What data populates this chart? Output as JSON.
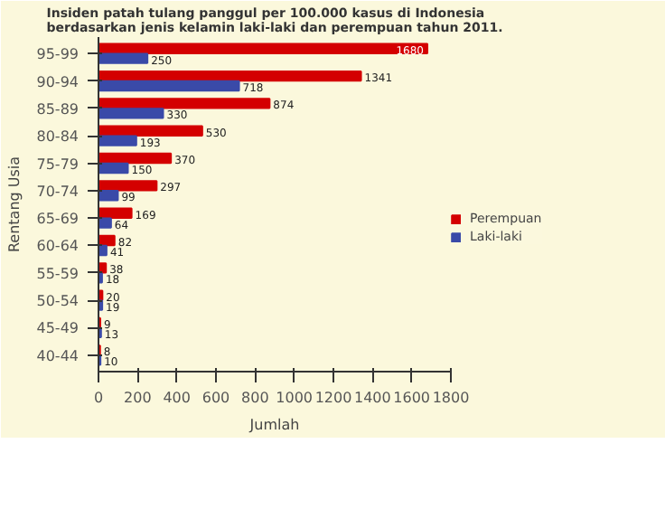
{
  "chart_data": {
    "type": "bar",
    "orientation": "horizontal",
    "title": "Insiden patah tulang panggul per 100.000 kasus di Indonesia berdasarkan jenis kelamin laki-laki dan perempuan tahun 2011.",
    "xlabel": "Jumlah",
    "ylabel": "Rentang Usia",
    "categories": [
      "95-99",
      "90-94",
      "85-89",
      "80-84",
      "75-79",
      "70-74",
      "65-69",
      "60-64",
      "55-59",
      "50-54",
      "45-49",
      "40-44"
    ],
    "series": [
      {
        "name": "Perempuan",
        "color": "#d40000",
        "values": [
          1680,
          1341,
          874,
          530,
          370,
          297,
          169,
          82,
          38,
          20,
          9,
          8
        ]
      },
      {
        "name": "Laki-laki",
        "color": "#3a4aa8",
        "values": [
          250,
          718,
          330,
          193,
          150,
          99,
          64,
          41,
          18,
          19,
          13,
          10
        ]
      }
    ],
    "xlim": [
      0,
      1800
    ],
    "xticks": [
      0,
      200,
      400,
      600,
      800,
      1000,
      1200,
      1400,
      1600,
      1800
    ],
    "data_labels": true,
    "grid": false,
    "legend": "right"
  }
}
